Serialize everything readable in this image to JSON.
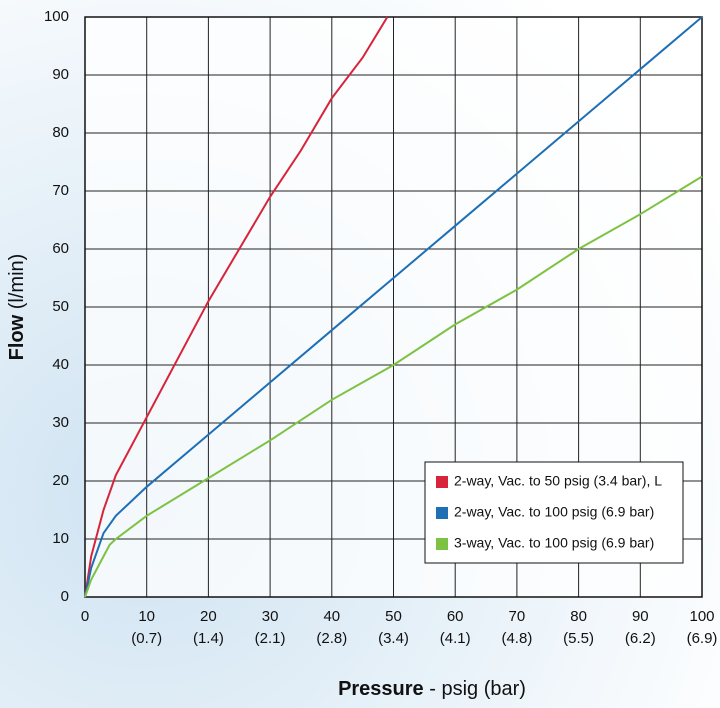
{
  "chart_data": {
    "type": "line",
    "x_label": {
      "bold": "Pressure",
      "rest": " - psig (bar)"
    },
    "y_label": {
      "bold": "Flow",
      "rest": " (l/min)"
    },
    "xlim": [
      0,
      100
    ],
    "ylim": [
      0,
      100
    ],
    "xticks": [
      0,
      10,
      20,
      30,
      40,
      50,
      60,
      70,
      80,
      90,
      100
    ],
    "xticks2": [
      {
        "value": 10,
        "label": "(0.7)"
      },
      {
        "value": 20,
        "label": "(1.4)"
      },
      {
        "value": 30,
        "label": "(2.1)"
      },
      {
        "value": 40,
        "label": "(2.8)"
      },
      {
        "value": 50,
        "label": "(3.4)"
      },
      {
        "value": 60,
        "label": "(4.1)"
      },
      {
        "value": 70,
        "label": "(4.8)"
      },
      {
        "value": 80,
        "label": "(5.5)"
      },
      {
        "value": 90,
        "label": "(6.2)"
      },
      {
        "value": 100,
        "label": "(6.9)"
      }
    ],
    "yticks": [
      0,
      10,
      20,
      30,
      40,
      50,
      60,
      70,
      80,
      90,
      100
    ],
    "grid": true,
    "legend": "lower right",
    "series": [
      {
        "name": "2-way, Vac. to 50 psig (3.4 bar), L",
        "color": "#d7243a",
        "x": [
          0,
          1,
          2,
          3,
          5,
          10,
          15,
          20,
          25,
          30,
          35,
          40,
          45,
          49
        ],
        "values": [
          0,
          7,
          11,
          15,
          21,
          31,
          41,
          51,
          60,
          69,
          77,
          86,
          93,
          100
        ]
      },
      {
        "name": "2-way, Vac. to 100 psig (6.9 bar)",
        "color": "#1f6fb5",
        "x": [
          0,
          1,
          2,
          3,
          5,
          8,
          10,
          20,
          30,
          40,
          50,
          60,
          70,
          80,
          90,
          100
        ],
        "values": [
          0,
          5,
          8,
          11,
          14,
          17,
          19,
          28,
          37,
          46,
          55,
          64,
          73,
          82,
          91,
          100
        ]
      },
      {
        "name": "3-way, Vac. to 100 psig (6.9 bar)",
        "color": "#7dc242",
        "x": [
          0,
          1,
          2,
          3,
          4,
          5,
          10,
          20,
          30,
          40,
          50,
          60,
          70,
          80,
          90,
          100
        ],
        "values": [
          0,
          3,
          5,
          7,
          9,
          10,
          14,
          20.5,
          27,
          34,
          40,
          47,
          53,
          60,
          66,
          72.5
        ]
      }
    ]
  }
}
